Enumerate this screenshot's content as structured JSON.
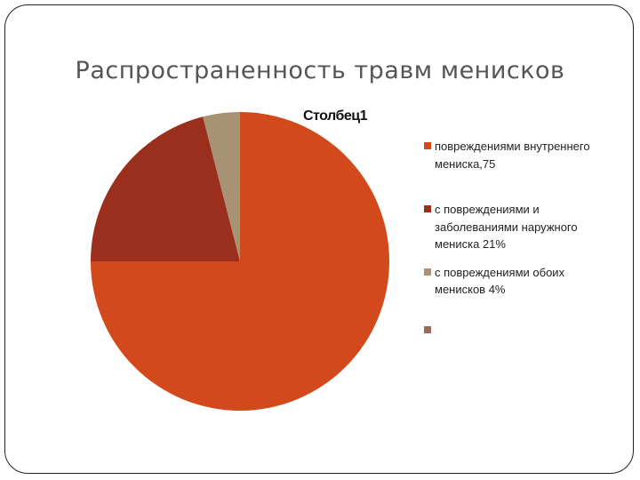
{
  "slide": {
    "title": "Распространенность травм менисков"
  },
  "chart_data": {
    "type": "pie",
    "title": "Столбец1",
    "categories": [
      "повреждениями внутреннего мениска,75",
      "с повреждениями и заболеваниями наружного мениска 21%",
      "с повреждениями обоих менисков 4%",
      ""
    ],
    "values": [
      75,
      21,
      4,
      0
    ],
    "colors": [
      "#D24A1B",
      "#9B2F1D",
      "#A89274",
      "#9B6A58"
    ],
    "legend_position": "right"
  }
}
